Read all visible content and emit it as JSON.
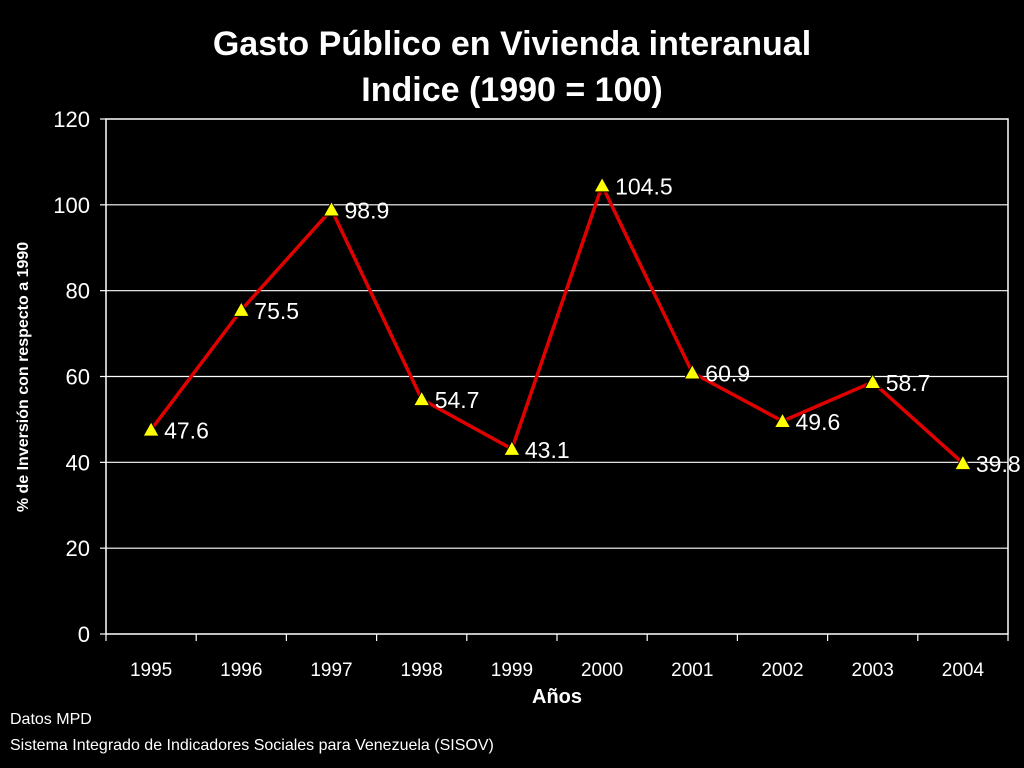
{
  "chart_data": {
    "type": "line",
    "title": [
      "Gasto Público en Vivienda interanual",
      "Indice  (1990 = 100)"
    ],
    "xlabel": "Años",
    "ylabel": "% de Inversión con respecto a 1990",
    "categories": [
      "1995",
      "1996",
      "1997",
      "1998",
      "1999",
      "2000",
      "2001",
      "2002",
      "2003",
      "2004"
    ],
    "series": [
      {
        "values": [
          47.6,
          75.5,
          98.9,
          54.7,
          43.1,
          104.5,
          60.9,
          49.6,
          58.7,
          39.8
        ],
        "labels": [
          "47.6",
          "75.5",
          "98.9",
          "54.7",
          "43.1",
          "104.5",
          "60.9",
          "49.6",
          "58.7",
          "39.8"
        ],
        "line_color": "#e00000",
        "marker": "triangle",
        "marker_color": "#ffff00"
      }
    ],
    "ylim": [
      0,
      120
    ],
    "yticks": [
      "0",
      "20",
      "40",
      "60",
      "80",
      "100",
      "120"
    ],
    "grid": true,
    "legend": "none"
  },
  "source": {
    "line1": "Datos MPD",
    "line2": "Sistema Integrado de Indicadores Sociales para Venezuela (SISOV)"
  },
  "colors": {
    "background": "#000000",
    "text": "#ffffff",
    "grid": "#ffffff",
    "line": "#e00000",
    "marker": "#ffff00"
  }
}
